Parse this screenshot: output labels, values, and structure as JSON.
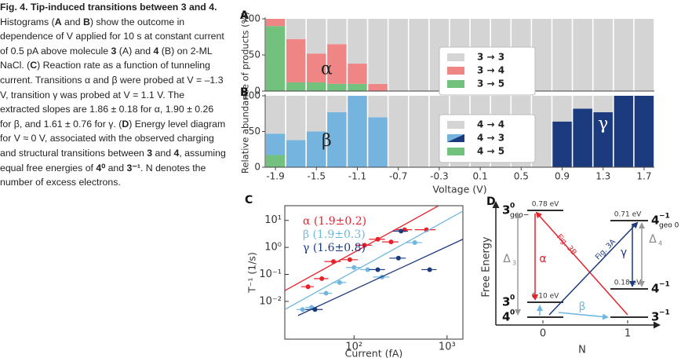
{
  "caption": {
    "segments": [
      {
        "text": "Fig. 4. Tip-induced transitions between 3 and 4.",
        "bold": true
      },
      {
        "text": " Histograms ("
      },
      {
        "text": "A",
        "bold": true
      },
      {
        "text": " and "
      },
      {
        "text": "B",
        "bold": true
      },
      {
        "text": ") show the outcome in dependence of V applied for 10 s at constant current of 0.5 pA above molecule "
      },
      {
        "text": "3",
        "bold": true
      },
      {
        "text": " (A) and "
      },
      {
        "text": "4",
        "bold": true
      },
      {
        "text": " (B) on 2-ML NaCl. ("
      },
      {
        "text": "C",
        "bold": true
      },
      {
        "text": ") Reaction rate as a function of tunneling current. Transitions α and β were probed at V = –1.3 V, transition γ was probed at V = 1.1 V. The extracted slopes are 1.86 ± 0.18 for α, 1.90 ± 0.26 for β, and 1.61 ± 0.76 for γ. ("
      },
      {
        "text": "D",
        "bold": true
      },
      {
        "text": ") Energy level diagram for V ≈ 0 V, associated with the observed charging and structural transitions between "
      },
      {
        "text": "3",
        "bold": true
      },
      {
        "text": " and "
      },
      {
        "text": "4",
        "bold": true
      },
      {
        "text": ", assuming equal free energies of "
      },
      {
        "text": "4⁰",
        "bold": true
      },
      {
        "text": " and "
      },
      {
        "text": "3⁻¹",
        "bold": true
      },
      {
        "text": ". N denotes the number of excess electrons."
      }
    ]
  },
  "chart_data": [
    {
      "type": "bar",
      "stacked": true,
      "panel": "A",
      "ylabel": "Relative abundance of products (%)",
      "x": [
        -1.9,
        -1.7,
        -1.5,
        -1.3,
        -1.1,
        -0.9,
        -0.7,
        -0.5,
        -0.3,
        -0.1,
        0.1,
        0.3,
        0.5,
        0.7,
        0.9,
        1.1,
        1.3,
        1.5,
        1.7
      ],
      "xlim": [
        -2.0,
        1.8
      ],
      "ylim": [
        0,
        100
      ],
      "yticks": [
        0,
        50,
        100
      ],
      "series": [
        {
          "name": "3 → 3",
          "color": "#d4d4d4",
          "values": [
            0,
            28,
            48,
            35,
            62,
            90,
            100,
            100,
            100,
            100,
            100,
            100,
            100,
            100,
            100,
            100,
            100,
            100,
            100
          ]
        },
        {
          "name": "3 → 4",
          "color": "#f08585",
          "values": [
            10,
            60,
            40,
            55,
            28,
            10,
            0,
            0,
            0,
            0,
            0,
            0,
            0,
            0,
            0,
            0,
            0,
            0,
            0
          ]
        },
        {
          "name": "3 → 5",
          "color": "#72c17c",
          "values": [
            90,
            12,
            12,
            10,
            10,
            0,
            0,
            0,
            0,
            0,
            0,
            0,
            0,
            0,
            0,
            0,
            0,
            0,
            0
          ]
        }
      ],
      "annotations": [
        "α"
      ]
    },
    {
      "type": "bar",
      "stacked": true,
      "panel": "B",
      "xlabel": "Voltage (V)",
      "x": [
        -1.9,
        -1.7,
        -1.5,
        -1.3,
        -1.1,
        -0.9,
        -0.7,
        -0.5,
        -0.3,
        -0.1,
        0.1,
        0.3,
        0.5,
        0.7,
        0.9,
        1.1,
        1.3,
        1.5,
        1.7
      ],
      "xlim": [
        -2.0,
        1.8
      ],
      "xticks": [
        -1.9,
        -1.5,
        -1.1,
        -0.7,
        -0.3,
        0.1,
        0.5,
        0.9,
        1.3,
        1.7
      ],
      "ylim": [
        0,
        100
      ],
      "yticks": [
        0,
        50,
        100
      ],
      "series": [
        {
          "name": "4 → 4",
          "color": "#d4d4d4",
          "values": [
            53,
            62,
            50,
            23,
            0,
            30,
            100,
            100,
            100,
            100,
            100,
            100,
            100,
            100,
            36,
            18,
            23,
            0,
            0
          ]
        },
        {
          "name": "4 → 3",
          "color": "#74b4de",
          "color_positive": "#1c3a7e",
          "values": [
            30,
            38,
            50,
            77,
            100,
            70,
            0,
            0,
            0,
            0,
            0,
            0,
            0,
            0,
            64,
            82,
            77,
            100,
            100
          ]
        },
        {
          "name": "4 → 5",
          "color": "#72c17c",
          "values": [
            17,
            0,
            0,
            0,
            0,
            0,
            0,
            0,
            0,
            0,
            0,
            0,
            0,
            0,
            0,
            0,
            0,
            0,
            0
          ]
        }
      ],
      "annotations": [
        "β",
        "γ"
      ]
    },
    {
      "type": "scatter",
      "panel": "C",
      "xlabel": "Current (fA)",
      "ylabel": "T⁻¹ (1/s)",
      "xscale": "log",
      "yscale": "log",
      "xlim": [
        18,
        1480
      ],
      "ylim": [
        0.0004,
        35
      ],
      "xticks": [
        {
          "value": 100,
          "label": "10²"
        },
        {
          "value": 1000,
          "label": "10³"
        }
      ],
      "yticks": [
        {
          "value": 0.01,
          "label": "10⁻²"
        },
        {
          "value": 0.1,
          "label": "10⁻¹"
        },
        {
          "value": 1,
          "label": "10⁰"
        },
        {
          "value": 10,
          "label": "10¹"
        }
      ],
      "series": [
        {
          "name": "α (1.9±0.2)",
          "color": "#e8212b",
          "x": [
            32,
            45,
            60,
            90,
            130,
            180,
            250,
            350,
            600
          ],
          "y": [
            0.035,
            0.07,
            0.3,
            0.35,
            1.2,
            2.0,
            1.6,
            4.5,
            4.5
          ],
          "xerr": [
            5,
            8,
            12,
            20,
            25,
            35,
            50,
            70,
            150
          ],
          "fit_x": [
            18,
            800
          ],
          "fit_y": [
            0.025,
            34
          ]
        },
        {
          "name": "β (1.9±0.3)",
          "color": "#6fb7e0",
          "x": [
            28,
            35,
            50,
            70,
            100,
            140,
            200,
            450
          ],
          "y": [
            0.005,
            0.006,
            0.02,
            0.05,
            0.18,
            0.15,
            0.08,
            1.5
          ],
          "xerr": [
            4,
            5,
            8,
            12,
            18,
            25,
            40,
            90
          ],
          "fit_x": [
            18,
            1480
          ],
          "fit_y": [
            0.005,
            22
          ]
        },
        {
          "name": "γ (1.6±0.8)",
          "color": "#1c3a7e",
          "x": [
            38,
            180,
            300,
            320,
            650
          ],
          "y": [
            0.005,
            0.15,
            0.4,
            4,
            0.15
          ],
          "xerr": [
            8,
            35,
            60,
            60,
            120
          ],
          "fit_x": [
            25,
            1480
          ],
          "fit_y": [
            0.003,
            2.0
          ]
        }
      ]
    }
  ],
  "diagram": {
    "panel": "D",
    "y_label": "Free Energy",
    "x_label": "N",
    "x_ticks": [
      "0",
      "1"
    ],
    "levels": [
      {
        "label": "3",
        "sup": "0",
        "sub": "geo−",
        "energy": "0.78 eV"
      },
      {
        "label": "4",
        "sup": "−1",
        "sub": "geo 0",
        "energy": "0.71 eV"
      },
      {
        "label": "4",
        "sup": "−1",
        "energy": "0.18 eV"
      },
      {
        "label": "3",
        "sup": "0",
        "energy": "0.10 eV"
      },
      {
        "label": "4",
        "sup": "0"
      },
      {
        "label": "3",
        "sup": "−1"
      }
    ],
    "arrows": [
      {
        "label": "Δ",
        "sub": "3"
      },
      {
        "label": "Δ",
        "sub": "4"
      },
      {
        "label": "α"
      },
      {
        "label": "γ"
      },
      {
        "label": "Fig. 3B"
      },
      {
        "label": "Fig. 3A"
      },
      {
        "label": "β"
      }
    ]
  }
}
